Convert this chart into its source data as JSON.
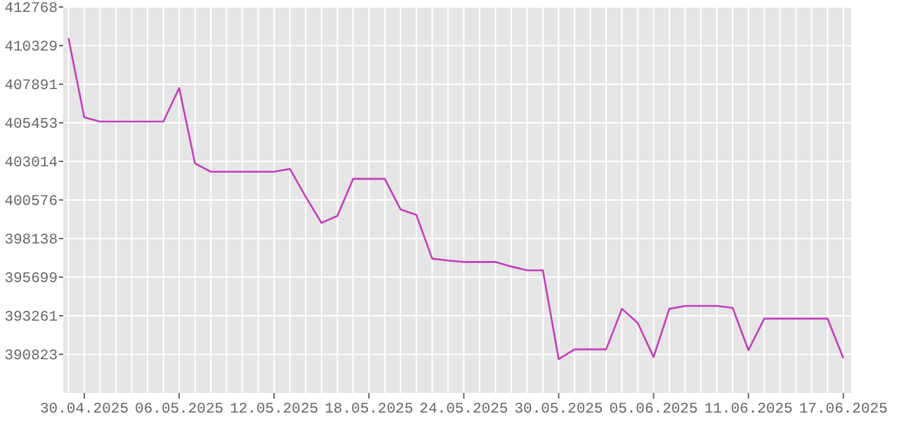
{
  "chart_data": {
    "type": "line",
    "x": [
      "2025-04-29",
      "2025-04-30",
      "2025-05-01",
      "2025-05-02",
      "2025-05-03",
      "2025-05-04",
      "2025-05-05",
      "2025-05-06",
      "2025-05-07",
      "2025-05-08",
      "2025-05-09",
      "2025-05-10",
      "2025-05-11",
      "2025-05-12",
      "2025-05-13",
      "2025-05-14",
      "2025-05-15",
      "2025-05-16",
      "2025-05-17",
      "2025-05-18",
      "2025-05-19",
      "2025-05-20",
      "2025-05-21",
      "2025-05-22",
      "2025-05-23",
      "2025-05-24",
      "2025-05-25",
      "2025-05-26",
      "2025-05-27",
      "2025-05-28",
      "2025-05-29",
      "2025-05-30",
      "2025-05-31",
      "2025-06-01",
      "2025-06-02",
      "2025-06-03",
      "2025-06-04",
      "2025-06-05",
      "2025-06-06",
      "2025-06-07",
      "2025-06-08",
      "2025-06-09",
      "2025-06-10",
      "2025-06-11",
      "2025-06-12",
      "2025-06-13",
      "2025-06-14",
      "2025-06-15",
      "2025-06-16",
      "2025-06-17"
    ],
    "series": [
      {
        "color": "#c040b8",
        "values": [
          410800,
          405800,
          405530,
          405530,
          405530,
          405530,
          405530,
          407650,
          402890,
          402360,
          402360,
          402360,
          402360,
          402360,
          402540,
          400780,
          399130,
          399570,
          401910,
          401910,
          401910,
          399980,
          399630,
          396870,
          396750,
          396660,
          396660,
          396660,
          396370,
          396130,
          396130,
          390520,
          391140,
          391140,
          391140,
          393700,
          392810,
          390650,
          393700,
          393880,
          393880,
          393880,
          393760,
          391090,
          393080,
          393080,
          393080,
          393080,
          393080,
          390580
        ]
      }
    ],
    "xlim": [
      "2025-04-28T16:00",
      "2025-06-17T12:00"
    ],
    "ylim": [
      388385,
      412768
    ],
    "yticks": [
      390823,
      393261,
      395699,
      398138,
      400576,
      403014,
      405453,
      407891,
      410329,
      412768
    ],
    "xticks": [
      {
        "value": "2025-04-29",
        "label": null
      },
      {
        "value": "2025-04-30",
        "label": "30.04.2025"
      },
      {
        "value": "2025-05-01",
        "label": null
      },
      {
        "value": "2025-05-02",
        "label": null
      },
      {
        "value": "2025-05-03",
        "label": null
      },
      {
        "value": "2025-05-04",
        "label": null
      },
      {
        "value": "2025-05-05",
        "label": null
      },
      {
        "value": "2025-05-06",
        "label": "06.05.2025"
      },
      {
        "value": "2025-05-07",
        "label": null
      },
      {
        "value": "2025-05-08",
        "label": null
      },
      {
        "value": "2025-05-09",
        "label": null
      },
      {
        "value": "2025-05-10",
        "label": null
      },
      {
        "value": "2025-05-11",
        "label": null
      },
      {
        "value": "2025-05-12",
        "label": "12.05.2025"
      },
      {
        "value": "2025-05-13",
        "label": null
      },
      {
        "value": "2025-05-14",
        "label": null
      },
      {
        "value": "2025-05-15",
        "label": null
      },
      {
        "value": "2025-05-16",
        "label": null
      },
      {
        "value": "2025-05-17",
        "label": null
      },
      {
        "value": "2025-05-18",
        "label": "18.05.2025"
      },
      {
        "value": "2025-05-19",
        "label": null
      },
      {
        "value": "2025-05-20",
        "label": null
      },
      {
        "value": "2025-05-21",
        "label": null
      },
      {
        "value": "2025-05-22",
        "label": null
      },
      {
        "value": "2025-05-23",
        "label": null
      },
      {
        "value": "2025-05-24",
        "label": "24.05.2025"
      },
      {
        "value": "2025-05-25",
        "label": null
      },
      {
        "value": "2025-05-26",
        "label": null
      },
      {
        "value": "2025-05-27",
        "label": null
      },
      {
        "value": "2025-05-28",
        "label": null
      },
      {
        "value": "2025-05-29",
        "label": null
      },
      {
        "value": "2025-05-30",
        "label": "30.05.2025"
      },
      {
        "value": "2025-05-31",
        "label": null
      },
      {
        "value": "2025-06-01",
        "label": null
      },
      {
        "value": "2025-06-02",
        "label": null
      },
      {
        "value": "2025-06-03",
        "label": null
      },
      {
        "value": "2025-06-04",
        "label": null
      },
      {
        "value": "2025-06-05",
        "label": "05.06.2025"
      },
      {
        "value": "2025-06-06",
        "label": null
      },
      {
        "value": "2025-06-07",
        "label": null
      },
      {
        "value": "2025-06-08",
        "label": null
      },
      {
        "value": "2025-06-09",
        "label": null
      },
      {
        "value": "2025-06-10",
        "label": null
      },
      {
        "value": "2025-06-11",
        "label": "11.06.2025"
      },
      {
        "value": "2025-06-12",
        "label": null
      },
      {
        "value": "2025-06-13",
        "label": null
      },
      {
        "value": "2025-06-14",
        "label": null
      },
      {
        "value": "2025-06-15",
        "label": null
      },
      {
        "value": "2025-06-16",
        "label": null
      },
      {
        "value": "2025-06-17",
        "label": "17.06.2025"
      }
    ],
    "grid": true,
    "line_style": "solid"
  }
}
